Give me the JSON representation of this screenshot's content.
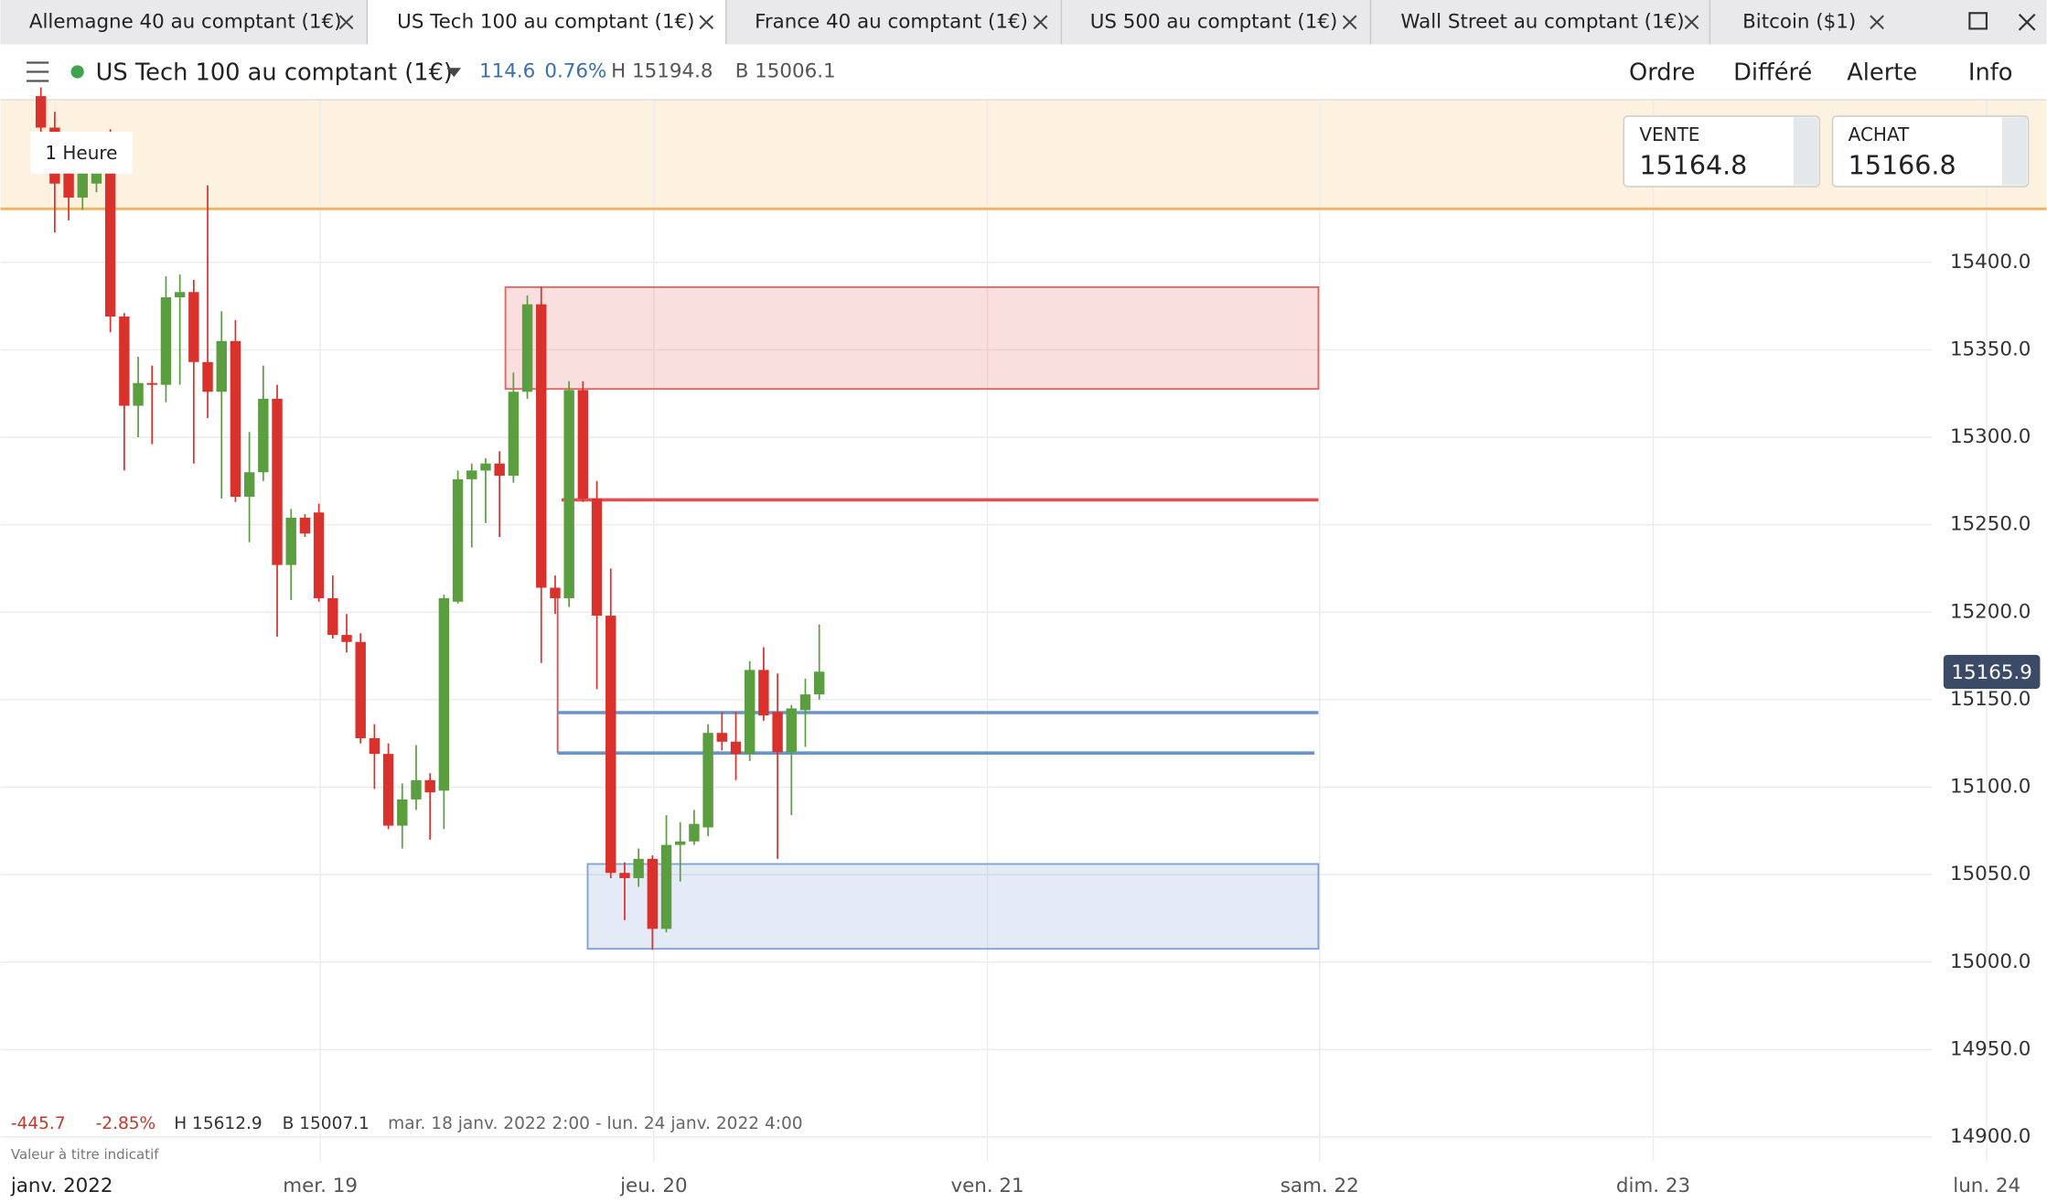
{
  "tabs": [
    "Allemagne 40 au comptant (1€)",
    "US Tech 100 au comptant (1€)",
    "France 40 au comptant (1€)",
    "US 500 au comptant (1€)",
    "Wall Street au comptant (1€)",
    "Bitcoin ($1)"
  ],
  "header": {
    "instrument": "US Tech 100 au comptant (1€)",
    "change": "114.6",
    "change_pct": "0.76%",
    "high": "H 15194.8",
    "low": "B 15006.1",
    "menu": [
      "Ordre",
      "Différé",
      "Alerte",
      "Info"
    ]
  },
  "quotes": {
    "sell_label": "VENTE",
    "sell": "15164.8",
    "buy_label": "ACHAT",
    "buy": "15166.8"
  },
  "timeframe": "1 Heure",
  "footer": {
    "change": "-445.7",
    "change_pct": "-2.85%",
    "high": "H 15612.9",
    "low": "B 15007.1",
    "range": "mar. 18 janv. 2022 2:00 - lun. 24 janv. 2022 4:00",
    "note": "Valeur à titre indicatif",
    "x_start_label": "janv. 2022"
  },
  "chart_data": {
    "type": "candlestick",
    "up_color": "#5a9e3f",
    "down_color": "#d9312b",
    "open": [
      15495,
      15477,
      15453,
      15437,
      15445,
      15468,
      15369,
      15318,
      15331,
      15330,
      15380,
      15383,
      15343,
      15326,
      15355,
      15266,
      15280,
      15322,
      15227,
      15254,
      15257,
      15208,
      15187,
      15183,
      15128,
      15119,
      15078,
      15093,
      15104,
      15098,
      15206,
      15276,
      15281,
      15285,
      15278,
      15326,
      15376,
      15214,
      15208,
      15327,
      15265,
      15198,
      15051,
      15048,
      15059,
      15019,
      15067,
      15069,
      15077,
      15131,
      15126,
      15119,
      15167,
      15143,
      15120,
      15144,
      15153
    ],
    "high": [
      15500,
      15486,
      15464,
      15470,
      15460,
      15476,
      15371,
      15346,
      15341,
      15392,
      15393,
      15390,
      15444,
      15372,
      15367,
      15303,
      15341,
      15330,
      15259,
      15256,
      15262,
      15221,
      15199,
      15188,
      15136,
      15125,
      15102,
      15124,
      15108,
      15210,
      15281,
      15285,
      15288,
      15292,
      15337,
      15381,
      15386,
      15221,
      15332,
      15332,
      15275,
      15225,
      15057,
      15065,
      15061,
      15084,
      15080,
      15087,
      15136,
      15143,
      15143,
      15172,
      15180,
      15165,
      15147,
      15162,
      15193
    ],
    "low": [
      15470,
      15417,
      15424,
      15430,
      15440,
      15360,
      15281,
      15300,
      15296,
      15320,
      15330,
      15285,
      15311,
      15265,
      15263,
      15240,
      15275,
      15186,
      15207,
      15243,
      15206,
      15185,
      15177,
      15125,
      15099,
      15076,
      15065,
      15087,
      15070,
      15076,
      15205,
      15237,
      15251,
      15243,
      15274,
      15322,
      15171,
      15199,
      15203,
      15263,
      15156,
      15048,
      15024,
      15043,
      15007,
      15017,
      15046,
      15067,
      15072,
      15121,
      15104,
      15115,
      15138,
      15059,
      15084,
      15123,
      15150
    ],
    "close": [
      15477,
      15445,
      15437,
      15453,
      15455,
      15369,
      15318,
      15331,
      15330,
      15380,
      15383,
      15343,
      15326,
      15355,
      15266,
      15280,
      15322,
      15227,
      15254,
      15245,
      15208,
      15187,
      15183,
      15128,
      15119,
      15078,
      15093,
      15104,
      15097,
      15208,
      15276,
      15281,
      15285,
      15278,
      15326,
      15376,
      15214,
      15208,
      15327,
      15265,
      15198,
      15051,
      15048,
      15059,
      15019,
      15067,
      15069,
      15079,
      15131,
      15126,
      15119,
      15167,
      15141,
      15120,
      15145,
      15153,
      15166
    ],
    "last_price": 15165.9,
    "xlim": [
      -2.91,
      144.3
    ],
    "ylim": [
      14886,
      15492.5
    ],
    "yticks": [
      {
        "value": 14900,
        "label": "14900.0"
      },
      {
        "value": 14950,
        "label": "14950.0"
      },
      {
        "value": 15000,
        "label": "15000.0"
      },
      {
        "value": 15050,
        "label": "15050.0"
      },
      {
        "value": 15100,
        "label": "15100.0"
      },
      {
        "value": 15150,
        "label": "15150.0"
      },
      {
        "value": 15200,
        "label": "15200.0"
      },
      {
        "value": 15250,
        "label": "15250.0"
      },
      {
        "value": 15300,
        "label": "15300.0"
      },
      {
        "value": 15350,
        "label": "15350.0"
      },
      {
        "value": 15400,
        "label": "15400.0"
      }
    ],
    "xticks": [
      {
        "value": 20.1,
        "label": "mer. 19"
      },
      {
        "value": 44.1,
        "label": "jeu. 20"
      },
      {
        "value": 68.1,
        "label": "ven. 21"
      },
      {
        "value": 92,
        "label": "sam. 22"
      },
      {
        "value": 116,
        "label": "dim. 23"
      },
      {
        "value": 140,
        "label": "lun. 24"
      }
    ],
    "grid": true
  }
}
